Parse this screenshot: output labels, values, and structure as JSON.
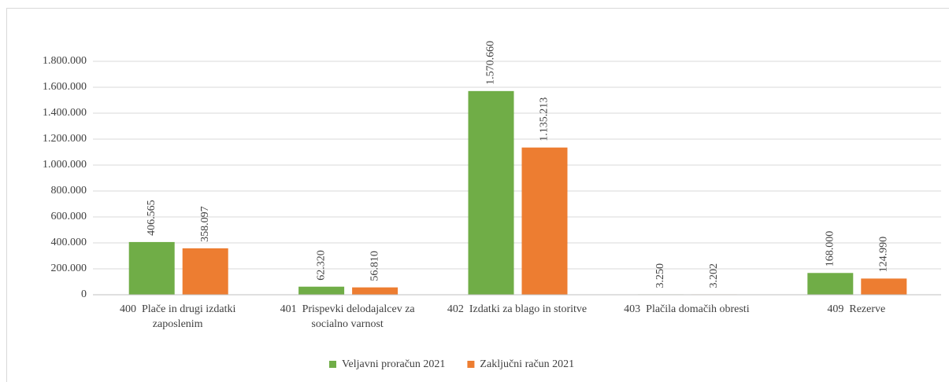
{
  "chart_data": {
    "type": "bar",
    "categories": [
      "400  Plače in drugi izdatki zaposlenim",
      "401  Prispevki delodajalcev za socialno varnost",
      "402  Izdatki za blago in storitve",
      "403  Plačila domačih obresti",
      "409  Rezerve"
    ],
    "series": [
      {
        "name": "Veljavni proračun 2021",
        "color": "#70ad47",
        "values": [
          406565,
          62320,
          1570660,
          3250,
          168000
        ],
        "value_labels": [
          "406.565",
          "62.320",
          "1.570.660",
          "3.250",
          "168.000"
        ]
      },
      {
        "name": "Zaključni račun 2021",
        "color": "#ed7d31",
        "values": [
          358097,
          56810,
          1135213,
          3202,
          124990
        ],
        "value_labels": [
          "358.097",
          "56.810",
          "1.135.213",
          "3.202",
          "124.990"
        ]
      }
    ],
    "ylim": [
      0,
      1800000
    ],
    "yticks": [
      0,
      {
        "value": 200000,
        "label": "200.000"
      },
      {
        "value": 400000,
        "label": "400.000"
      },
      {
        "value": 600000,
        "label": "600.000"
      },
      {
        "value": 800000,
        "label": "800.000"
      },
      {
        "value": 1000000,
        "label": "1.000.000"
      },
      {
        "value": 1200000,
        "label": "1.200.000"
      },
      {
        "value": 1400000,
        "label": "1.400.000"
      },
      {
        "value": 1600000,
        "label": "1.600.000"
      },
      {
        "value": 1800000,
        "label": "1.800.000"
      }
    ],
    "grid": true,
    "legend": "bottom"
  }
}
